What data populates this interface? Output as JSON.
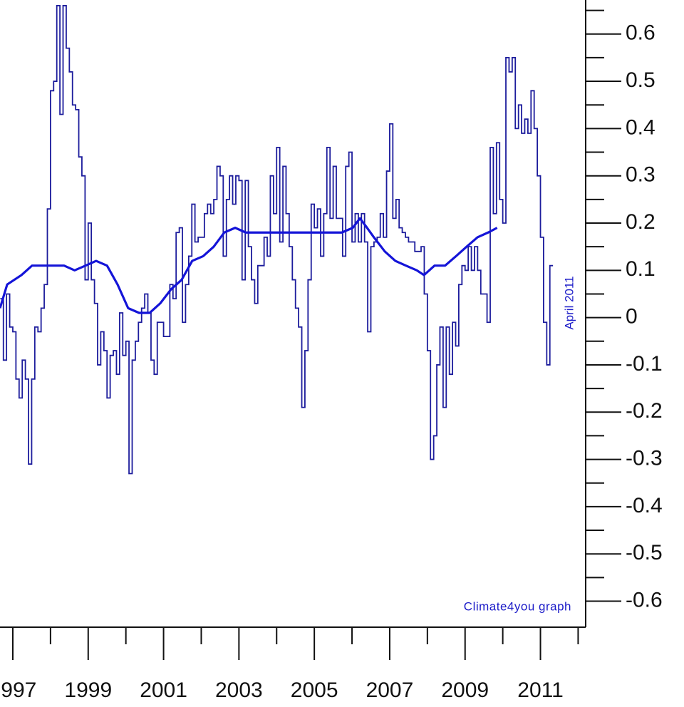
{
  "chart_data": {
    "type": "line",
    "annotations": [
      "April 2011",
      "Climate4you graph"
    ],
    "xlim": [
      1996.66,
      2012.2
    ],
    "ylim": [
      -0.655,
      0.672
    ],
    "xticks": [
      1997,
      1999,
      2001,
      2003,
      2005,
      2007,
      2009,
      2011
    ],
    "xminorticks": [
      1998,
      2000,
      2002,
      2004,
      2006,
      2008,
      2010,
      2012
    ],
    "yticks": [
      -0.6,
      -0.5,
      -0.4,
      -0.3,
      -0.2,
      -0.1,
      0,
      0.1,
      0.2,
      0.3,
      0.4,
      0.5,
      0.6
    ],
    "yminorticks": [
      -0.55,
      -0.45,
      -0.35,
      -0.25,
      -0.15,
      -0.05,
      0.05,
      0.15,
      0.25,
      0.35,
      0.45,
      0.55,
      0.65
    ],
    "series": [
      {
        "color": "#1c1c9c",
        "style": "step",
        "x": [
          1996.667,
          1996.75,
          1996.833,
          1996.917,
          1997,
          1997.083,
          1997.167,
          1997.25,
          1997.333,
          1997.417,
          1997.5,
          1997.583,
          1997.667,
          1997.75,
          1997.833,
          1997.917,
          1998,
          1998.083,
          1998.167,
          1998.25,
          1998.333,
          1998.417,
          1998.5,
          1998.583,
          1998.667,
          1998.75,
          1998.833,
          1998.917,
          1999,
          1999.083,
          1999.167,
          1999.25,
          1999.333,
          1999.417,
          1999.5,
          1999.583,
          1999.667,
          1999.75,
          1999.833,
          1999.917,
          2000,
          2000.083,
          2000.167,
          2000.25,
          2000.333,
          2000.417,
          2000.5,
          2000.583,
          2000.667,
          2000.75,
          2000.833,
          2000.917,
          2001,
          2001.083,
          2001.167,
          2001.25,
          2001.333,
          2001.417,
          2001.5,
          2001.583,
          2001.667,
          2001.75,
          2001.833,
          2001.917,
          2002,
          2002.083,
          2002.167,
          2002.25,
          2002.333,
          2002.417,
          2002.5,
          2002.583,
          2002.667,
          2002.75,
          2002.833,
          2002.917,
          2003,
          2003.083,
          2003.167,
          2003.25,
          2003.333,
          2003.417,
          2003.5,
          2003.583,
          2003.667,
          2003.75,
          2003.833,
          2003.917,
          2004,
          2004.083,
          2004.167,
          2004.25,
          2004.333,
          2004.417,
          2004.5,
          2004.583,
          2004.667,
          2004.75,
          2004.833,
          2004.917,
          2005,
          2005.083,
          2005.167,
          2005.25,
          2005.333,
          2005.417,
          2005.5,
          2005.583,
          2005.667,
          2005.75,
          2005.833,
          2005.917,
          2006,
          2006.083,
          2006.167,
          2006.25,
          2006.333,
          2006.417,
          2006.5,
          2006.583,
          2006.667,
          2006.75,
          2006.833,
          2006.917,
          2007,
          2007.083,
          2007.167,
          2007.25,
          2007.333,
          2007.417,
          2007.5,
          2007.583,
          2007.667,
          2007.75,
          2007.833,
          2007.917,
          2008,
          2008.083,
          2008.167,
          2008.25,
          2008.333,
          2008.417,
          2008.5,
          2008.583,
          2008.667,
          2008.75,
          2008.833,
          2008.917,
          2009,
          2009.083,
          2009.167,
          2009.25,
          2009.333,
          2009.417,
          2009.5,
          2009.583,
          2009.667,
          2009.75,
          2009.833,
          2009.917,
          2010,
          2010.083,
          2010.167,
          2010.25,
          2010.333,
          2010.417,
          2010.5,
          2010.583,
          2010.667,
          2010.75,
          2010.833,
          2010.917,
          2011,
          2011.083,
          2011.167,
          2011.25
        ],
        "values": [
          0.04,
          -0.09,
          0.05,
          -0.02,
          -0.03,
          -0.13,
          -0.17,
          -0.09,
          -0.13,
          -0.31,
          -0.13,
          -0.02,
          -0.03,
          0.02,
          0.07,
          0.23,
          0.48,
          0.5,
          0.66,
          0.43,
          0.66,
          0.57,
          0.52,
          0.45,
          0.44,
          0.34,
          0.3,
          0.08,
          0.2,
          0.08,
          0.03,
          -0.1,
          -0.03,
          -0.07,
          -0.17,
          -0.08,
          -0.07,
          -0.12,
          0.01,
          -0.08,
          -0.05,
          -0.33,
          -0.09,
          -0.05,
          -0.01,
          0.02,
          0.05,
          0.01,
          -0.09,
          -0.12,
          -0.01,
          -0.01,
          -0.04,
          -0.04,
          0.07,
          0.04,
          0.18,
          0.19,
          -0.01,
          0.07,
          0.13,
          0.24,
          0.16,
          0.17,
          0.17,
          0.22,
          0.24,
          0.22,
          0.25,
          0.32,
          0.3,
          0.13,
          0.25,
          0.3,
          0.24,
          0.3,
          0.29,
          0.08,
          0.29,
          0.15,
          0.08,
          0.03,
          0.11,
          0.11,
          0.17,
          0.13,
          0.3,
          0.22,
          0.36,
          0.16,
          0.32,
          0.22,
          0.15,
          0.08,
          0.02,
          -0.02,
          -0.19,
          -0.07,
          0.08,
          0.24,
          0.19,
          0.23,
          0.13,
          0.22,
          0.36,
          0.21,
          0.32,
          0.21,
          0.21,
          0.13,
          0.32,
          0.35,
          0.16,
          0.22,
          0.16,
          0.22,
          0.16,
          -0.03,
          0.15,
          0.16,
          0.17,
          0.22,
          0.17,
          0.31,
          0.41,
          0.21,
          0.25,
          0.19,
          0.18,
          0.17,
          0.16,
          0.16,
          0.14,
          0.14,
          0.15,
          0.05,
          -0.07,
          -0.3,
          -0.25,
          -0.1,
          -0.02,
          -0.19,
          -0.02,
          -0.12,
          -0.01,
          -0.06,
          0.07,
          0.11,
          0.1,
          0.15,
          0.1,
          0.15,
          0.1,
          0.05,
          0.05,
          -0.01,
          0.36,
          0.22,
          0.37,
          0.25,
          0.2,
          0.55,
          0.52,
          0.55,
          0.4,
          0.45,
          0.39,
          0.42,
          0.39,
          0.48,
          0.4,
          0.3,
          0.17,
          -0.01,
          -0.1,
          0.11
        ]
      },
      {
        "color": "#1414d8",
        "style": "line",
        "x": [
          1996.66,
          1996.85,
          1997.04,
          1997.23,
          1997.51,
          1997.79,
          1998.08,
          1998.36,
          1998.64,
          1998.93,
          1999.21,
          1999.5,
          1999.78,
          2000.06,
          2000.35,
          2000.63,
          2000.91,
          2001.2,
          2001.48,
          2001.76,
          2002.05,
          2002.33,
          2002.61,
          2002.9,
          2003.18,
          2003.47,
          2003.84,
          2004.22,
          2004.6,
          2004.98,
          2005.36,
          2005.73,
          2006.02,
          2006.21,
          2006.4,
          2006.58,
          2006.87,
          2007.15,
          2007.43,
          2007.72,
          2007.91,
          2008.19,
          2008.47,
          2008.76,
          2009.04,
          2009.33,
          2009.61,
          2009.85
        ],
        "values": [
          0.02,
          0.07,
          0.08,
          0.09,
          0.11,
          0.11,
          0.11,
          0.11,
          0.1,
          0.11,
          0.12,
          0.11,
          0.07,
          0.02,
          0.01,
          0.01,
          0.03,
          0.06,
          0.08,
          0.12,
          0.13,
          0.15,
          0.18,
          0.19,
          0.18,
          0.18,
          0.18,
          0.18,
          0.18,
          0.18,
          0.18,
          0.18,
          0.19,
          0.21,
          0.19,
          0.17,
          0.14,
          0.12,
          0.11,
          0.1,
          0.09,
          0.11,
          0.11,
          0.13,
          0.15,
          0.17,
          0.18,
          0.19
        ]
      }
    ]
  }
}
